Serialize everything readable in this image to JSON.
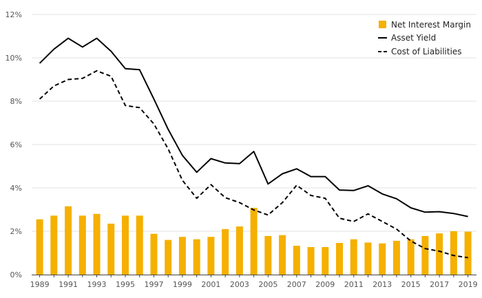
{
  "chart_data": {
    "type": "bar",
    "title": "",
    "xlabel": "",
    "ylabel": "",
    "ylim": [
      0,
      12
    ],
    "yticks": [
      "0%",
      "2%",
      "4%",
      "6%",
      "8%",
      "10%",
      "12%"
    ],
    "x": [
      1989,
      1990,
      1991,
      1992,
      1993,
      1994,
      1995,
      1996,
      1997,
      1998,
      1999,
      2000,
      2001,
      2002,
      2003,
      2004,
      2005,
      2006,
      2007,
      2008,
      2009,
      2010,
      2011,
      2012,
      2013,
      2014,
      2015,
      2016,
      2017,
      2018,
      2019
    ],
    "xtick_labels": [
      "1989",
      "1991",
      "1993",
      "1995",
      "1997",
      "1999",
      "2001",
      "2003",
      "2005",
      "2007",
      "2009",
      "2011",
      "2013",
      "2015",
      "2017",
      "2019"
    ],
    "grid": "horizontal",
    "legend_position": "top-right",
    "series": [
      {
        "name": "Net Interest Margin",
        "kind": "bar",
        "color": "#F5B000",
        "values": [
          2.55,
          2.72,
          3.15,
          2.72,
          2.8,
          2.35,
          2.72,
          2.72,
          1.88,
          1.6,
          1.74,
          1.63,
          1.74,
          2.1,
          2.22,
          3.08,
          1.78,
          1.82,
          1.33,
          1.27,
          1.27,
          1.46,
          1.63,
          1.48,
          1.44,
          1.56,
          1.63,
          1.78,
          1.9,
          2.0,
          1.98
        ]
      },
      {
        "name": "Asset Yield",
        "kind": "line",
        "color": "#000000",
        "dash": "solid",
        "values": [
          9.75,
          10.4,
          10.9,
          10.5,
          10.9,
          10.3,
          9.5,
          9.45,
          8.1,
          6.7,
          5.5,
          4.72,
          5.35,
          5.15,
          5.12,
          5.68,
          4.18,
          4.65,
          4.88,
          4.52,
          4.52,
          3.9,
          3.88,
          4.1,
          3.72,
          3.5,
          3.08,
          2.88,
          2.9,
          2.82,
          2.68
        ]
      },
      {
        "name": "Cost of Liabilities",
        "kind": "line",
        "color": "#000000",
        "dash": "dashed",
        "values": [
          8.1,
          8.7,
          9.0,
          9.05,
          9.4,
          9.15,
          7.8,
          7.7,
          6.95,
          5.8,
          4.35,
          3.52,
          4.15,
          3.55,
          3.32,
          2.98,
          2.75,
          3.32,
          4.12,
          3.65,
          3.52,
          2.6,
          2.45,
          2.8,
          2.45,
          2.1,
          1.55,
          1.2,
          1.08,
          0.88,
          0.78
        ]
      }
    ]
  }
}
